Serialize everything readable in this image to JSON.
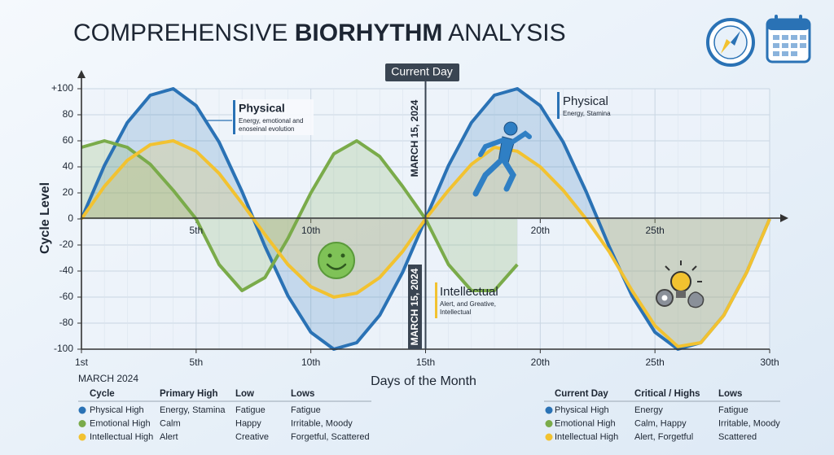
{
  "chart_data": {
    "type": "line",
    "title": [
      "COMPREHENSIVE",
      "BIORHYTHM",
      "ANALYSIS"
    ],
    "x_label": "Days of the Month",
    "y_label": "Cycle Level",
    "month_label": "MARCH 2024",
    "x": [
      0,
      1,
      2,
      3,
      4,
      5,
      6,
      7,
      8,
      9,
      10,
      11,
      12,
      13,
      14,
      15,
      16,
      17,
      18,
      19,
      20,
      21,
      22,
      23,
      24,
      25,
      26,
      27,
      28,
      29,
      30
    ],
    "xlim": [
      0,
      30
    ],
    "xticks": [
      {
        "value": 0,
        "label": "1st"
      },
      {
        "value": 5,
        "label": "5th"
      },
      {
        "value": 10,
        "label": "10th"
      },
      {
        "value": 15,
        "label": "15th"
      },
      {
        "value": 20,
        "label": "20th"
      },
      {
        "value": 25,
        "label": "25th"
      },
      {
        "value": 30,
        "label": "30th"
      }
    ],
    "xticks_mid": [
      {
        "value": 5,
        "label": "5th"
      },
      {
        "value": 10,
        "label": "10th"
      },
      {
        "value": 20,
        "label": "20th"
      },
      {
        "value": 25,
        "label": "25th"
      }
    ],
    "ylim": [
      -100,
      100
    ],
    "yticks": [
      {
        "value": 100,
        "label": "+100"
      },
      80,
      60,
      40,
      20,
      0,
      -20,
      -40,
      -60,
      -80,
      -100
    ],
    "grid": true,
    "series": [
      {
        "name": "Physical",
        "color": "#2a72b5",
        "values": [
          0,
          41,
          74,
          95,
          100,
          87,
          59,
          21,
          -21,
          -59,
          -87,
          -100,
          -95,
          -74,
          -41,
          0,
          41,
          74,
          95,
          100,
          87,
          59,
          21,
          -21,
          -59,
          -87,
          -100,
          -95,
          -74,
          -41,
          0
        ]
      },
      {
        "name": "Emotional",
        "color": "#7aab4a",
        "values": [
          55,
          60,
          55,
          42,
          22,
          0,
          -35,
          -55,
          -45,
          -15,
          20,
          50,
          60,
          48,
          25,
          0,
          -35,
          -55,
          -55,
          -35,
          null,
          null,
          null,
          null,
          null,
          null,
          null,
          null,
          null,
          null,
          null
        ]
      },
      {
        "name": "Intellectual",
        "color": "#f2c230",
        "values": [
          0,
          25,
          45,
          57,
          60,
          52,
          35,
          12,
          -12,
          -35,
          -52,
          -60,
          -57,
          -45,
          -25,
          0,
          22,
          42,
          55,
          52,
          40,
          22,
          0,
          -25,
          -55,
          -82,
          -98,
          -95,
          -74,
          -41,
          0
        ]
      }
    ],
    "current_day": {
      "value": 15,
      "label": "Current Day",
      "date": "MARCH 15, 2024",
      "date_lower": "MARCH 15, 2024"
    },
    "annotations": [
      {
        "title": "Physical",
        "text": [
          "Energy, emotional and",
          "enoseinal evolution"
        ]
      },
      {
        "title": "Physical",
        "text": [
          "Energy, Stamina"
        ]
      },
      {
        "title": "Intellectual",
        "text": [
          "Alert, and Greative,",
          "Intellectual"
        ]
      }
    ],
    "tables": [
      {
        "header": [
          "Cycle",
          "Primary High",
          "Low",
          "Lows"
        ],
        "rows": [
          [
            "Physical High",
            "Energy, Stamina",
            "Fatigue",
            "Fatigue"
          ],
          [
            "Emotional High",
            "Calm",
            "Happy",
            "Irritable, Moody"
          ],
          [
            "Intellectual High",
            "Alert",
            "Creative",
            "Forgetful, Scattered"
          ]
        ]
      },
      {
        "header": [
          "Current Day",
          "Critical / Highs",
          "Lows"
        ],
        "rows": [
          [
            "Physical High",
            "Energy",
            "Fatigue"
          ],
          [
            "Emotional High",
            "Calm, Happy",
            "Irritable, Moody"
          ],
          [
            "Intellectual High",
            "Alert, Forgetful",
            "Scattered"
          ]
        ]
      }
    ]
  }
}
